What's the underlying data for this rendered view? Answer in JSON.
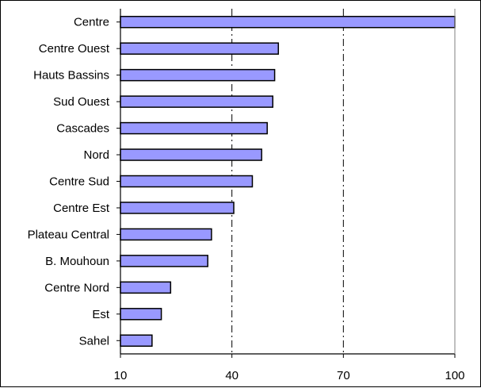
{
  "chart_data": {
    "type": "bar",
    "orientation": "horizontal",
    "categories": [
      "Centre",
      "Centre Ouest",
      "Hauts Bassins",
      "Sud Ouest",
      "Cascades",
      "Nord",
      "Centre Sud",
      "Centre Est",
      "Plateau Central",
      "B. Mouhoun",
      "Centre Nord",
      "Est",
      "Sahel"
    ],
    "values": [
      100,
      52.5,
      51.5,
      51,
      49.5,
      48,
      45.5,
      40.5,
      34.5,
      33.5,
      23.5,
      21,
      18.5
    ],
    "xlim": [
      10,
      100
    ],
    "xticks": [
      "10",
      "40",
      "70",
      "100"
    ],
    "grid": "vertical dash-dot",
    "colors": {
      "bar_fill": "#9999ff",
      "bar_stroke": "#000000",
      "grid": "#000000"
    }
  }
}
